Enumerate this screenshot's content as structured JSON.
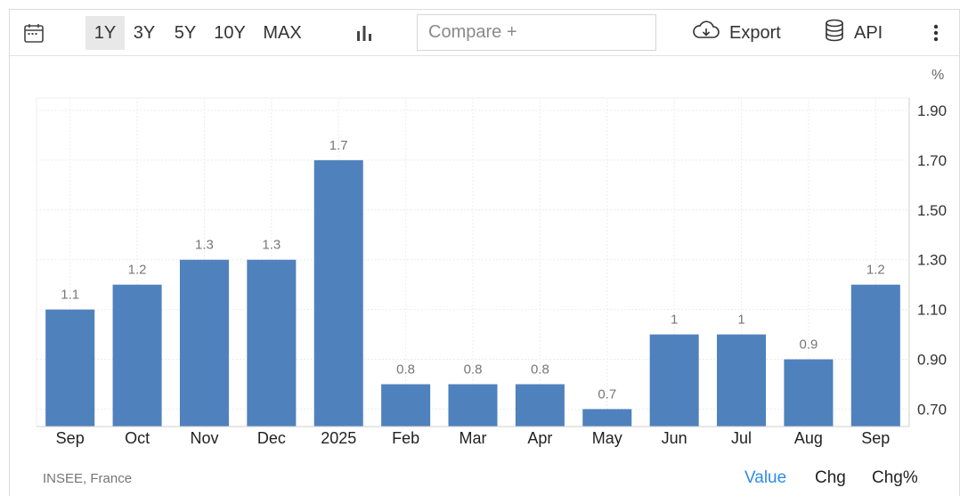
{
  "toolbar": {
    "ranges": [
      "1Y",
      "3Y",
      "5Y",
      "10Y",
      "MAX"
    ],
    "active_range": "1Y",
    "compare_placeholder": "Compare +",
    "export_label": "Export",
    "api_label": "API",
    "icons": [
      "calendar-icon",
      "bar-chart-icon",
      "cloud-download-icon",
      "database-icon",
      "more-vertical-icon"
    ]
  },
  "footer": {
    "source": "INSEE, France",
    "modes": [
      "Value",
      "Chg",
      "Chg%"
    ],
    "active_mode": "Value"
  },
  "colors": {
    "bar": "#4f81bd",
    "active_mode": "#2d8ce6",
    "grid": "#ececec"
  },
  "chart_data": {
    "type": "bar",
    "unit_label": "%",
    "categories": [
      "Sep",
      "Oct",
      "Nov",
      "Dec",
      "2025",
      "Feb",
      "Mar",
      "Apr",
      "May",
      "Jun",
      "Jul",
      "Aug",
      "Sep"
    ],
    "values": [
      1.1,
      1.2,
      1.3,
      1.3,
      1.7,
      0.8,
      0.8,
      0.8,
      0.7,
      1,
      1,
      0.9,
      1.2
    ],
    "data_labels": [
      "1.1",
      "1.2",
      "1.3",
      "1.3",
      "1.7",
      "0.8",
      "0.8",
      "0.8",
      "0.7",
      "1",
      "1",
      "0.9",
      "1.2"
    ],
    "y_ticks": [
      "1.90",
      "1.70",
      "1.50",
      "1.30",
      "1.10",
      "0.90",
      "0.70"
    ],
    "ylim": [
      0.63,
      1.95
    ],
    "y_axis_position": "right",
    "grid": true
  }
}
